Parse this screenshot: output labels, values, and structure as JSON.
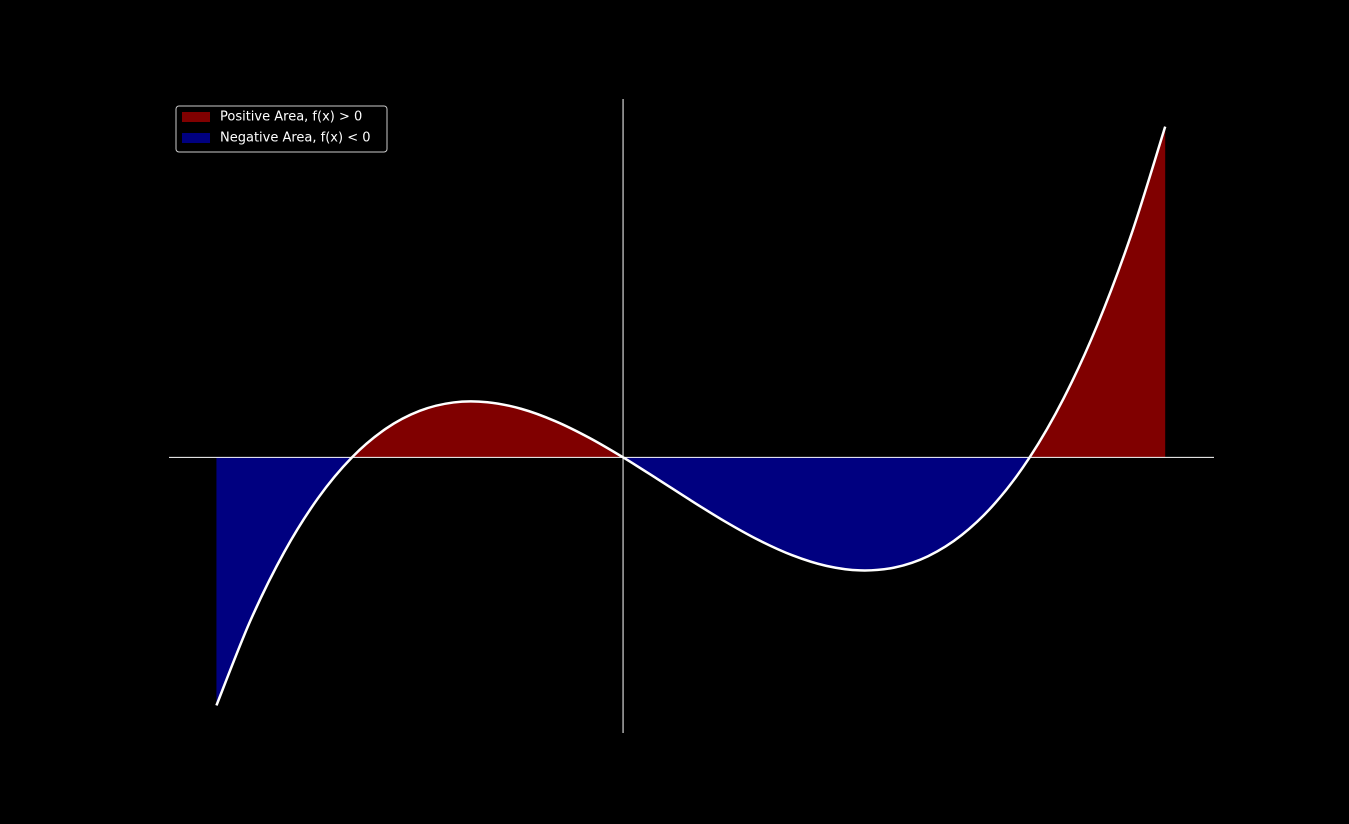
{
  "chart_data": {
    "type": "area-line",
    "x": [
      -3,
      -2.75,
      -2.5,
      -2.25,
      -2,
      -1.75,
      -1.5,
      -1.25,
      -1,
      -0.75,
      -0.5,
      -0.25,
      0,
      0.25,
      0.5,
      0.75,
      1,
      1.25,
      1.5,
      1.75,
      2,
      2.25,
      2.5,
      2.75,
      3,
      3.25,
      3.5,
      3.75,
      4
    ],
    "values": [
      -18,
      -11.859,
      -6.875,
      -2.953,
      0,
      2.078,
      3.375,
      3.984,
      4,
      3.516,
      2.625,
      1.422,
      0,
      -1.547,
      -3.125,
      -4.641,
      -6,
      -7.109,
      -7.875,
      -8.203,
      -8,
      -7.172,
      -5.625,
      -3.266,
      0,
      4.266,
      9.625,
      16.172,
      24
    ],
    "line_color": "#ffffff",
    "fills": [
      {
        "name": "Positive Area, f(x) > 0",
        "color": "#800000",
        "where": "above"
      },
      {
        "name": "Negative Area, f(x) < 0",
        "color": "#000080",
        "where": "below"
      }
    ],
    "xlim": [
      -3.35,
      4.36
    ],
    "ylim": [
      -20,
      26
    ],
    "legend": "upper left",
    "axes_through_origin": true
  }
}
